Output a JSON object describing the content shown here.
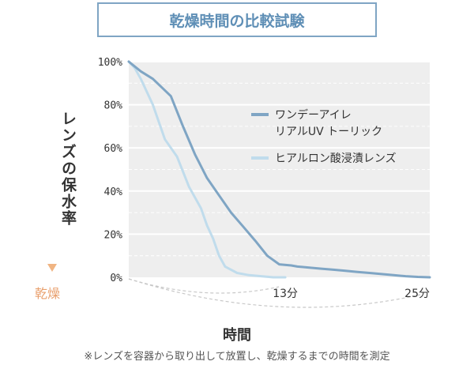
{
  "title": "乾燥時間の比較試験",
  "chart_data": {
    "type": "line",
    "ylabel": "レンズの保水率",
    "xlabel": "時間",
    "dry_label": "乾燥",
    "note": "※レンズを容器から取り出して放置し、乾燥するまでの時間を測定",
    "y_ticks": [
      "100%",
      "80%",
      "60%",
      "40%",
      "20%",
      "0%"
    ],
    "ylim": [
      0,
      100
    ],
    "xlim": [
      0,
      25
    ],
    "x_ticks": [
      "13分",
      "25分"
    ],
    "grid": true,
    "legend_position": "right",
    "series": [
      {
        "name": "ワンデーアイレ\nリアルUV トーリック",
        "color": "#7fa5c4",
        "x": [
          0,
          1,
          2,
          3.5,
          4.5,
          5.5,
          6.5,
          7.5,
          8.5,
          9.5,
          10.5,
          11.5,
          12.5,
          13.5,
          14,
          15,
          16,
          17,
          18,
          19,
          20,
          21,
          22,
          23,
          24,
          25
        ],
        "y": [
          100,
          95.5,
          92,
          84,
          70,
          57,
          46,
          38,
          30,
          23.5,
          17,
          10,
          6,
          5.5,
          5,
          4.5,
          4,
          3.5,
          3,
          2.5,
          2,
          1.5,
          1,
          0.5,
          0.2,
          0
        ]
      },
      {
        "name": "ヒアルロン酸浸漬レンズ",
        "color": "#c0dcec",
        "x": [
          0,
          0.5,
          1,
          2,
          3,
          4,
          5,
          6,
          6.5,
          7,
          7.5,
          8,
          9,
          10,
          11,
          12,
          13
        ],
        "y": [
          100,
          97,
          92,
          80,
          64,
          56,
          42,
          32,
          24,
          18,
          10,
          5,
          2,
          1,
          0.5,
          0,
          0
        ]
      }
    ]
  }
}
